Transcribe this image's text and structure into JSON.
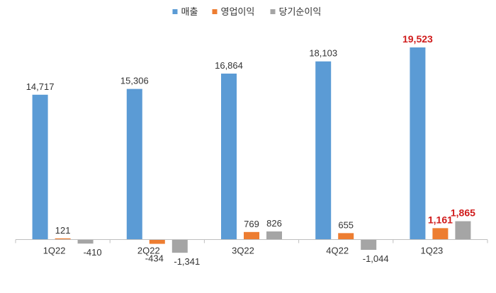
{
  "chart_data": {
    "type": "bar",
    "categories": [
      "1Q22",
      "2Q22",
      "3Q22",
      "4Q22",
      "1Q23"
    ],
    "series": [
      {
        "name": "매출",
        "color": "#5b9bd5",
        "values": [
          14717,
          15306,
          16864,
          18103,
          19523
        ]
      },
      {
        "name": "영업이익",
        "color": "#ed7d31",
        "values": [
          121,
          -434,
          769,
          655,
          1161
        ]
      },
      {
        "name": "당기순이익",
        "color": "#a5a5a5",
        "values": [
          -410,
          -1341,
          826,
          -1044,
          1865
        ]
      }
    ],
    "data_labels": [
      [
        "14,717",
        "15,306",
        "16,864",
        "18,103",
        "19,523"
      ],
      [
        "121",
        "-434",
        "769",
        "655",
        "1,161"
      ],
      [
        "-410",
        "-1,341",
        "826",
        "-1,044",
        "1,865"
      ]
    ],
    "highlight_category": "1Q23",
    "highlight_color": "#d01c1c",
    "ylim": [
      -2000,
      20500
    ],
    "legend_position": "top-center",
    "grid": false
  }
}
